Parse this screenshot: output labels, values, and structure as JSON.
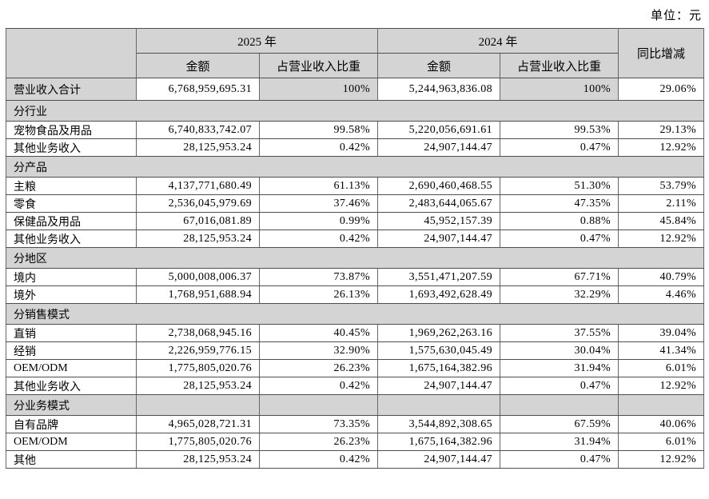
{
  "unit_label": "单位：元",
  "colors": {
    "header_bg": "#d4d4d4",
    "border": "#4e4e4e",
    "page_bg": "#ffffff"
  },
  "table": {
    "headers": {
      "year_2025": "2025 年",
      "year_2024": "2024 年",
      "amount": "金额",
      "share": "占营业收入比重",
      "yoy": "同比增减"
    },
    "rows": [
      {
        "kind": "total",
        "label": "营业收入合计",
        "amount_2025": "6,768,959,695.31",
        "share_2025": "100%",
        "amount_2024": "5,244,963,836.08",
        "share_2024": "100%",
        "yoy": "29.06%"
      },
      {
        "kind": "section",
        "label": "分行业"
      },
      {
        "kind": "data",
        "label": "宠物食品及用品",
        "amount_2025": "6,740,833,742.07",
        "share_2025": "99.58%",
        "amount_2024": "5,220,056,691.61",
        "share_2024": "99.53%",
        "yoy": "29.13%"
      },
      {
        "kind": "data",
        "label": "其他业务收入",
        "amount_2025": "28,125,953.24",
        "share_2025": "0.42%",
        "amount_2024": "24,907,144.47",
        "share_2024": "0.47%",
        "yoy": "12.92%"
      },
      {
        "kind": "section",
        "label": "分产品"
      },
      {
        "kind": "data",
        "label": "主粮",
        "amount_2025": "4,137,771,680.49",
        "share_2025": "61.13%",
        "amount_2024": "2,690,460,468.55",
        "share_2024": "51.30%",
        "yoy": "53.79%"
      },
      {
        "kind": "data",
        "label": "零食",
        "amount_2025": "2,536,045,979.69",
        "share_2025": "37.46%",
        "amount_2024": "2,483,644,065.67",
        "share_2024": "47.35%",
        "yoy": "2.11%"
      },
      {
        "kind": "data",
        "label": "保健品及用品",
        "amount_2025": "67,016,081.89",
        "share_2025": "0.99%",
        "amount_2024": "45,952,157.39",
        "share_2024": "0.88%",
        "yoy": "45.84%"
      },
      {
        "kind": "data",
        "label": "其他业务收入",
        "amount_2025": "28,125,953.24",
        "share_2025": "0.42%",
        "amount_2024": "24,907,144.47",
        "share_2024": "0.47%",
        "yoy": "12.92%"
      },
      {
        "kind": "section",
        "label": "分地区"
      },
      {
        "kind": "data",
        "label": "境内",
        "amount_2025": "5,000,008,006.37",
        "share_2025": "73.87%",
        "amount_2024": "3,551,471,207.59",
        "share_2024": "67.71%",
        "yoy": "40.79%"
      },
      {
        "kind": "data",
        "label": "境外",
        "amount_2025": "1,768,951,688.94",
        "share_2025": "26.13%",
        "amount_2024": "1,693,492,628.49",
        "share_2024": "32.29%",
        "yoy": "4.46%"
      },
      {
        "kind": "section",
        "label": "分销售模式"
      },
      {
        "kind": "data",
        "label": "直销",
        "amount_2025": "2,738,068,945.16",
        "share_2025": "40.45%",
        "amount_2024": "1,969,262,263.16",
        "share_2024": "37.55%",
        "yoy": "39.04%"
      },
      {
        "kind": "data",
        "label": "经销",
        "amount_2025": "2,226,959,776.15",
        "share_2025": "32.90%",
        "amount_2024": "1,575,630,045.49",
        "share_2024": "30.04%",
        "yoy": "41.34%"
      },
      {
        "kind": "data",
        "label": "OEM/ODM",
        "amount_2025": "1,775,805,020.76",
        "share_2025": "26.23%",
        "amount_2024": "1,675,164,382.96",
        "share_2024": "31.94%",
        "yoy": "6.01%"
      },
      {
        "kind": "data",
        "label": "其他业务收入",
        "amount_2025": "28,125,953.24",
        "share_2025": "0.42%",
        "amount_2024": "24,907,144.47",
        "share_2024": "0.47%",
        "yoy": "12.92%"
      },
      {
        "kind": "section-split",
        "label": "分业务模式"
      },
      {
        "kind": "data",
        "label": "自有品牌",
        "amount_2025": "4,965,028,721.31",
        "share_2025": "73.35%",
        "amount_2024": "3,544,892,308.65",
        "share_2024": "67.59%",
        "yoy": "40.06%"
      },
      {
        "kind": "data",
        "label": "OEM/ODM",
        "amount_2025": "1,775,805,020.76",
        "share_2025": "26.23%",
        "amount_2024": "1,675,164,382.96",
        "share_2024": "31.94%",
        "yoy": "6.01%"
      },
      {
        "kind": "data",
        "label": "其他",
        "amount_2025": "28,125,953.24",
        "share_2025": "0.42%",
        "amount_2024": "24,907,144.47",
        "share_2024": "0.47%",
        "yoy": "12.92%"
      }
    ]
  }
}
